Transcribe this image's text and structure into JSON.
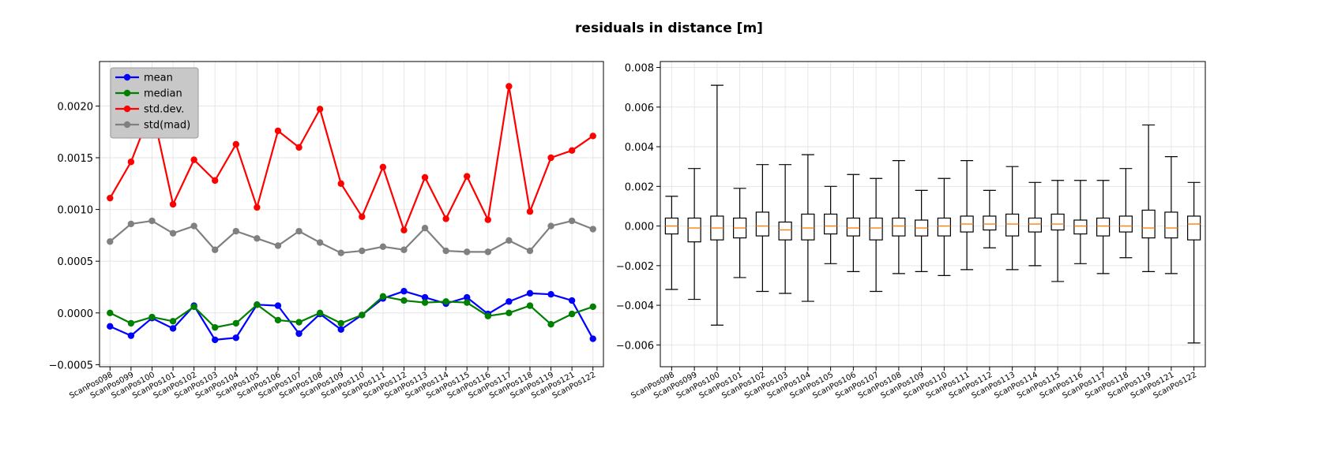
{
  "figure": {
    "title": "residuals in distance [m]"
  },
  "chart_data": [
    {
      "type": "line",
      "title": "",
      "xlabel": "",
      "ylabel": "",
      "ylim": [
        -0.00052,
        0.00243
      ],
      "grid": true,
      "legend_placement": "top-left",
      "categories": [
        "ScanPos098",
        "ScanPos099",
        "ScanPos100",
        "ScanPos101",
        "ScanPos102",
        "ScanPos103",
        "ScanPos104",
        "ScanPos105",
        "ScanPos106",
        "ScanPos107",
        "ScanPos108",
        "ScanPos109",
        "ScanPos110",
        "ScanPos111",
        "ScanPos112",
        "ScanPos113",
        "ScanPos114",
        "ScanPos115",
        "ScanPos116",
        "ScanPos117",
        "ScanPos118",
        "ScanPos119",
        "ScanPos121",
        "ScanPos122"
      ],
      "y_ticks": [
        "0.0020",
        "0.0015",
        "0.0010",
        "0.0005",
        "0.0000",
        "−0.0005"
      ],
      "y_tick_values": [
        0.002,
        0.0015,
        0.001,
        0.0005,
        0.0,
        -0.0005
      ],
      "series": [
        {
          "name": "mean",
          "color": "#0000ff",
          "values": [
            -0.00013,
            -0.00022,
            -5e-05,
            -0.00015,
            7e-05,
            -0.00026,
            -0.00024,
            8e-05,
            7e-05,
            -0.0002,
            -1e-05,
            -0.00016,
            -2e-05,
            0.00014,
            0.00021,
            0.00015,
            9e-05,
            0.00015,
            -1e-05,
            0.00011,
            0.00019,
            0.00018,
            0.00012,
            -0.00025
          ]
        },
        {
          "name": "median",
          "color": "#008000",
          "values": [
            0.0,
            -0.0001,
            -4e-05,
            -8e-05,
            6e-05,
            -0.00014,
            -0.0001,
            8e-05,
            -7e-05,
            -9e-05,
            0.0,
            -0.0001,
            -2e-05,
            0.00016,
            0.00012,
            0.0001,
            0.00011,
            0.0001,
            -3e-05,
            0.0,
            7e-05,
            -0.00011,
            -1e-05,
            6e-05
          ]
        },
        {
          "name": "std.dev.",
          "color": "#ff0000",
          "values": [
            0.00111,
            0.00146,
            0.00198,
            0.00105,
            0.00148,
            0.00128,
            0.00163,
            0.00102,
            0.00176,
            0.0016,
            0.00197,
            0.00125,
            0.00093,
            0.00141,
            0.0008,
            0.00131,
            0.00091,
            0.00132,
            0.0009,
            0.00219,
            0.00098,
            0.0015,
            0.00157,
            0.00171
          ]
        },
        {
          "name": "std(mad)",
          "color": "#808080",
          "values": [
            0.00069,
            0.00086,
            0.00089,
            0.00077,
            0.00084,
            0.00061,
            0.00079,
            0.00072,
            0.00065,
            0.00079,
            0.00068,
            0.00058,
            0.0006,
            0.00064,
            0.00061,
            0.00082,
            0.0006,
            0.00059,
            0.00059,
            0.0007,
            0.0006,
            0.00084,
            0.00089,
            0.00081
          ]
        }
      ]
    },
    {
      "type": "box",
      "title": "",
      "xlabel": "",
      "ylabel": "",
      "ylim": [
        -0.0071,
        0.0083
      ],
      "grid": true,
      "categories": [
        "ScanPos098",
        "ScanPos099",
        "ScanPos100",
        "ScanPos101",
        "ScanPos102",
        "ScanPos103",
        "ScanPos104",
        "ScanPos105",
        "ScanPos106",
        "ScanPos107",
        "ScanPos108",
        "ScanPos109",
        "ScanPos110",
        "ScanPos111",
        "ScanPos112",
        "ScanPos113",
        "ScanPos114",
        "ScanPos115",
        "ScanPos116",
        "ScanPos117",
        "ScanPos118",
        "ScanPos119",
        "ScanPos121",
        "ScanPos122"
      ],
      "y_ticks": [
        "0.008",
        "0.006",
        "0.004",
        "0.002",
        "0.000",
        "−0.002",
        "−0.004",
        "−0.006"
      ],
      "y_tick_values": [
        0.008,
        0.006,
        0.004,
        0.002,
        0.0,
        -0.002,
        -0.004,
        -0.006
      ],
      "median_color": "#ff7f0e",
      "boxes": [
        {
          "whislo": -0.0032,
          "q1": -0.0004,
          "med": 0.0,
          "q3": 0.0004,
          "whishi": 0.0015
        },
        {
          "whislo": -0.0037,
          "q1": -0.0008,
          "med": -0.0001,
          "q3": 0.0004,
          "whishi": 0.0029
        },
        {
          "whislo": -0.005,
          "q1": -0.0007,
          "med": -0.0001,
          "q3": 0.0005,
          "whishi": 0.0071
        },
        {
          "whislo": -0.0026,
          "q1": -0.0006,
          "med": -0.0001,
          "q3": 0.0004,
          "whishi": 0.0019
        },
        {
          "whislo": -0.0033,
          "q1": -0.0005,
          "med": 0.0,
          "q3": 0.0007,
          "whishi": 0.0031
        },
        {
          "whislo": -0.0034,
          "q1": -0.0007,
          "med": -0.0002,
          "q3": 0.0002,
          "whishi": 0.0031
        },
        {
          "whislo": -0.0038,
          "q1": -0.0007,
          "med": -0.0001,
          "q3": 0.0006,
          "whishi": 0.0036
        },
        {
          "whislo": -0.0019,
          "q1": -0.0004,
          "med": 0.0,
          "q3": 0.0006,
          "whishi": 0.002
        },
        {
          "whislo": -0.0023,
          "q1": -0.0005,
          "med": -0.0001,
          "q3": 0.0004,
          "whishi": 0.0026
        },
        {
          "whislo": -0.0033,
          "q1": -0.0007,
          "med": -0.0001,
          "q3": 0.0004,
          "whishi": 0.0024
        },
        {
          "whislo": -0.0024,
          "q1": -0.0005,
          "med": 0.0,
          "q3": 0.0004,
          "whishi": 0.0033
        },
        {
          "whislo": -0.0023,
          "q1": -0.0005,
          "med": -0.0001,
          "q3": 0.0003,
          "whishi": 0.0018
        },
        {
          "whislo": -0.0025,
          "q1": -0.0005,
          "med": 0.0,
          "q3": 0.0004,
          "whishi": 0.0024
        },
        {
          "whislo": -0.0022,
          "q1": -0.0003,
          "med": 0.0001,
          "q3": 0.0005,
          "whishi": 0.0033
        },
        {
          "whislo": -0.0011,
          "q1": -0.0002,
          "med": 0.0001,
          "q3": 0.0005,
          "whishi": 0.0018
        },
        {
          "whislo": -0.0022,
          "q1": -0.0005,
          "med": 0.0001,
          "q3": 0.0006,
          "whishi": 0.003
        },
        {
          "whislo": -0.002,
          "q1": -0.0003,
          "med": 0.0001,
          "q3": 0.0004,
          "whishi": 0.0022
        },
        {
          "whislo": -0.0028,
          "q1": -0.0002,
          "med": 0.0001,
          "q3": 0.0006,
          "whishi": 0.0023
        },
        {
          "whislo": -0.0019,
          "q1": -0.0004,
          "med": 0.0,
          "q3": 0.0003,
          "whishi": 0.0023
        },
        {
          "whislo": -0.0024,
          "q1": -0.0005,
          "med": 0.0,
          "q3": 0.0004,
          "whishi": 0.0023
        },
        {
          "whislo": -0.0016,
          "q1": -0.0003,
          "med": 0.0,
          "q3": 0.0005,
          "whishi": 0.0029
        },
        {
          "whislo": -0.0023,
          "q1": -0.0006,
          "med": -0.0001,
          "q3": 0.0008,
          "whishi": 0.0051
        },
        {
          "whislo": -0.0024,
          "q1": -0.0006,
          "med": -0.0001,
          "q3": 0.0007,
          "whishi": 0.0035
        },
        {
          "whislo": -0.0059,
          "q1": -0.0007,
          "med": 0.0001,
          "q3": 0.0005,
          "whishi": 0.0022
        }
      ]
    }
  ]
}
